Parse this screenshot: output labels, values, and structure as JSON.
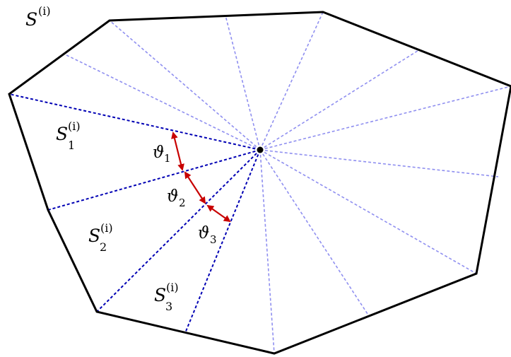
{
  "colors": {
    "outline": "#000000",
    "faint_rays": "#8f8ff0",
    "dark_rays": "#0000b4",
    "angle_arrows": "#c80000",
    "center_point": "#000000"
  },
  "labels": {
    "set": {
      "base": "S",
      "sup": "(i)"
    },
    "sub1": {
      "base": "S",
      "sub": "1",
      "sup": "(i)"
    },
    "sub2": {
      "base": "S",
      "sub": "2",
      "sup": "(i)"
    },
    "sub3": {
      "base": "S",
      "sub": "3",
      "sup": "(i)"
    },
    "angle1": {
      "base": "ϑ",
      "sub": "1"
    },
    "angle2": {
      "base": "ϑ",
      "sub": "2"
    },
    "angle3": {
      "base": "ϑ",
      "sub": "3"
    }
  }
}
